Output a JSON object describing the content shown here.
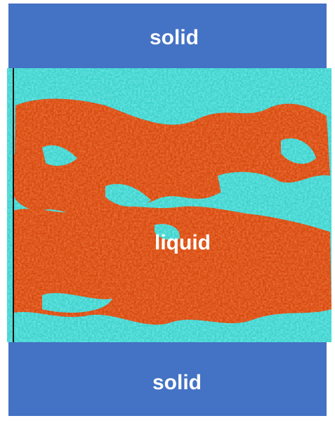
{
  "top_label": "solid",
  "middle_label": "liquid",
  "bottom_label": "solid"
}
